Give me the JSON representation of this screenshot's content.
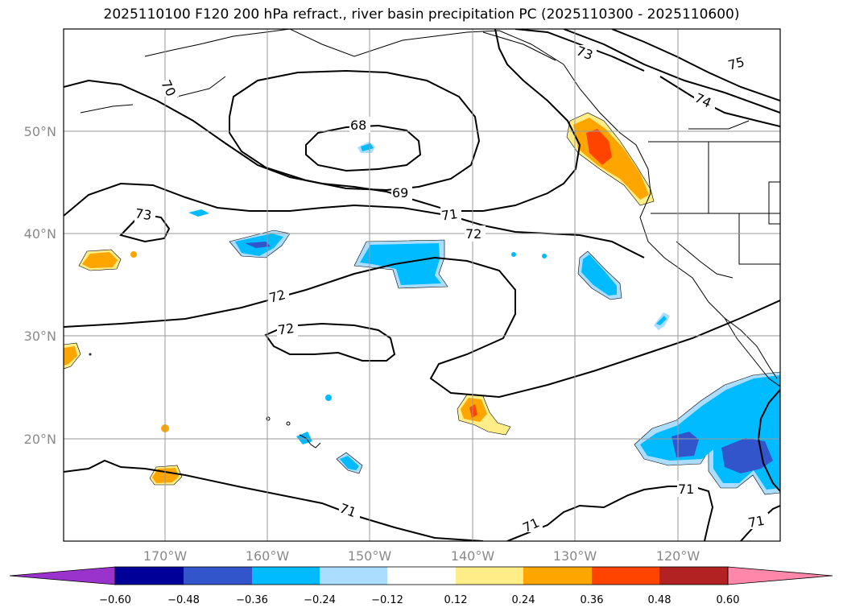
{
  "title": "2025110100 F120 200 hPa refract., river basin precipitation PC (2025110300 - 2025110600)",
  "map": {
    "lon_labels": [
      "170°W",
      "160°W",
      "150°W",
      "140°W",
      "130°W",
      "120°W"
    ],
    "lat_labels": [
      "50°N",
      "40°N",
      "30°N",
      "20°N"
    ],
    "contour_labels": [
      "70",
      "73",
      "75",
      "74",
      "68",
      "69",
      "73",
      "71",
      "72",
      "72",
      "72",
      "71",
      "71",
      "71",
      "71"
    ],
    "grid": true
  },
  "colorbar": {
    "ticks": [
      "−0.60",
      "−0.48",
      "−0.36",
      "−0.24",
      "−0.12",
      "0.12",
      "0.24",
      "0.36",
      "0.48",
      "0.60"
    ],
    "colors": [
      "#9933cc",
      "#000099",
      "#3355cc",
      "#00bbff",
      "#aaddff",
      "#ffffff",
      "#ffee88",
      "#ffa500",
      "#ff4400",
      "#b22222",
      "#ff88aa"
    ]
  },
  "colors": {
    "neg_light": "#aaddff",
    "neg_mid": "#00bbff",
    "neg_dark": "#3355cc",
    "pos_light": "#ffee88",
    "pos_mid": "#ffa500",
    "pos_dark": "#ff4400"
  }
}
